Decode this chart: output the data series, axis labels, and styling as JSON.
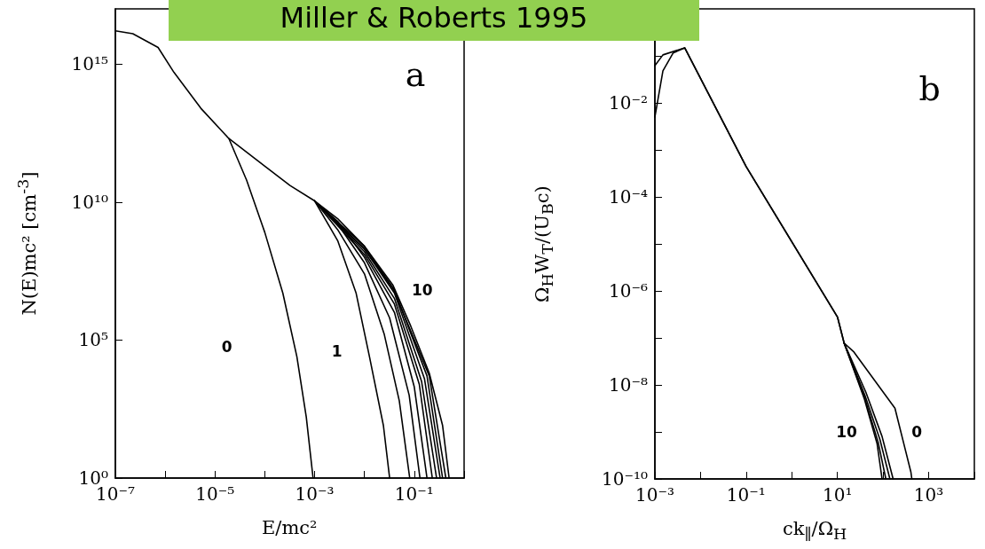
{
  "chart_data": [
    {
      "type": "line",
      "title": "Miller & Roberts 1995",
      "xlabel": "E/mc²",
      "ylabel": "N(E)mc² [cm$^{-3}$]",
      "log": "xy",
      "marker": "none",
      "line_style": "solid",
      "xlim": [
        1e-07,
        1
      ],
      "ylim": [
        1,
        1e+17
      ],
      "xticks": [
        {
          "value": 1e-07,
          "label": "10⁻⁷"
        },
        {
          "value": 1e-06,
          "label": null
        },
        {
          "value": 1e-05,
          "label": "10⁻⁵"
        },
        {
          "value": 0.0001,
          "label": null
        },
        {
          "value": 0.001,
          "label": "10⁻³"
        },
        {
          "value": 0.01,
          "label": null
        },
        {
          "value": 0.1,
          "label": "10⁻¹"
        },
        {
          "value": 1,
          "label": null
        }
      ],
      "yticks": [
        {
          "value": 1,
          "label": "10⁰"
        },
        {
          "value": 100000.0,
          "label": "10⁵"
        },
        {
          "value": 10000000000.0,
          "label": "10¹⁰"
        },
        {
          "value": 1000000000000000.0,
          "label": "10¹⁵"
        }
      ],
      "annotations": [
        "a",
        "0",
        "1",
        "10"
      ],
      "series": [
        {
          "color": "#000000",
          "x": [
            1e-07,
            2.24e-07,
            7.2e-07,
            1.5e-06,
            5.2e-06,
            1.9e-05,
            0.0001,
            0.00032,
            0.001,
            0.0029,
            0.01,
            0.037,
            0.085,
            0.2,
            0.37,
            0.5
          ],
          "values": [
            1.6e+16,
            1.26e+16,
            4000000000000000.0,
            500000000000000.0,
            25000000000000.0,
            2000000000000.0,
            200000000000.0,
            40000000000.0,
            11000000000.0,
            2500000000.0,
            250000000.0,
            10000000.0,
            320000.0,
            6300,
            80,
            1
          ]
        },
        {
          "color": "#000000",
          "x": [
            1.9e-05,
            4.3e-05,
            0.0001,
            0.00023,
            0.00044,
            0.00068,
            0.00093
          ],
          "values": [
            2000000000000.0,
            63000000000.0,
            790000000.0,
            5000000.0,
            25000.0,
            160,
            1
          ]
        },
        {
          "color": "#000000",
          "x": [
            0.001,
            0.0029,
            0.0068,
            0.0126,
            0.024,
            0.032
          ],
          "values": [
            11000000000.0,
            400000000.0,
            5000000.0,
            25000.0,
            80,
            1
          ]
        },
        {
          "color": "#000000",
          "x": [
            0.001,
            0.0029,
            0.01,
            0.025,
            0.05,
            0.081
          ],
          "values": [
            11000000000.0,
            1000000000.0,
            25000000.0,
            160000.0,
            630,
            1
          ]
        },
        {
          "color": "#000000",
          "x": [
            0.001,
            0.0029,
            0.01,
            0.032,
            0.079,
            0.13
          ],
          "values": [
            11000000000.0,
            1600000000.0,
            63000000.0,
            630000.0,
            1000,
            1
          ]
        },
        {
          "color": "#000000",
          "x": [
            0.001,
            0.0029,
            0.01,
            0.04,
            0.1,
            0.18
          ],
          "values": [
            11000000000.0,
            2000000000.0,
            100000000.0,
            1000000.0,
            2000,
            1
          ]
        },
        {
          "color": "#000000",
          "x": [
            0.001,
            0.01,
            0.04,
            0.126,
            0.23
          ],
          "values": [
            11000000000.0,
            126000000.0,
            2000000.0,
            2500,
            1
          ]
        },
        {
          "color": "#000000",
          "x": [
            0.001,
            0.01,
            0.04,
            0.14,
            0.28
          ],
          "values": [
            11000000000.0,
            160000000.0,
            3200000.0,
            3200,
            1
          ]
        },
        {
          "color": "#000000",
          "x": [
            0.001,
            0.01,
            0.04,
            0.16,
            0.33
          ],
          "values": [
            11000000000.0,
            200000000.0,
            5000000.0,
            4000,
            1
          ]
        },
        {
          "color": "#000000",
          "x": [
            0.001,
            0.01,
            0.04,
            0.18,
            0.37
          ],
          "values": [
            11000000000.0,
            200000000.0,
            6300000.0,
            5000,
            1
          ]
        },
        {
          "color": "#000000",
          "x": [
            0.001,
            0.01,
            0.037,
            0.2,
            0.43
          ],
          "values": [
            11000000000.0,
            250000000.0,
            7900000.0,
            5000,
            1
          ]
        }
      ]
    },
    {
      "type": "line",
      "xlabel": "ck$_{∥}$/Ω$_{H}$",
      "ylabel": "Ω$_{H}$W$_{T}$/(U$_{B}$c)",
      "log": "xy",
      "marker": "none",
      "line_style": "solid",
      "xlim": [
        0.001,
        10000.0
      ],
      "ylim": [
        1e-10,
        1
      ],
      "xticks": [
        {
          "value": 0.001,
          "label": "10⁻³"
        },
        {
          "value": 0.01,
          "label": null
        },
        {
          "value": 0.1,
          "label": "10⁻¹"
        },
        {
          "value": 1,
          "label": null
        },
        {
          "value": 10,
          "label": "10¹"
        },
        {
          "value": 100,
          "label": null
        },
        {
          "value": 1000,
          "label": "10³"
        },
        {
          "value": 10000.0,
          "label": null
        }
      ],
      "yticks": [
        {
          "value": 1e-10,
          "label": "10⁻¹⁰"
        },
        {
          "value": 1e-09,
          "label": null
        },
        {
          "value": 1e-08,
          "label": "10⁻⁸"
        },
        {
          "value": 1e-07,
          "label": null
        },
        {
          "value": 1e-06,
          "label": "10⁻⁶"
        },
        {
          "value": 1e-05,
          "label": null
        },
        {
          "value": 0.0001,
          "label": "10⁻⁴"
        },
        {
          "value": 0.001,
          "label": null
        },
        {
          "value": 0.01,
          "label": "10⁻²"
        },
        {
          "value": 0.1,
          "label": null
        },
        {
          "value": 1,
          "label": null
        }
      ],
      "annotations": [
        "b",
        "10",
        "0"
      ],
      "series": [
        {
          "color": "#000000",
          "x": [
            0.001,
            0.0015,
            0.0045,
            0.1,
            10,
            14,
            39,
            74,
            95
          ],
          "values": [
            0.062,
            0.105,
            0.148,
            0.00044,
            2.8e-07,
            7.8e-08,
            5e-09,
            5.6e-10,
            1e-10
          ]
        },
        {
          "color": "#000000",
          "x": [
            0.001,
            0.0015,
            0.0025,
            0.0045,
            0.1,
            10,
            14,
            23,
            182,
            407,
            427
          ],
          "values": [
            0.005,
            0.048,
            0.115,
            0.148,
            0.00044,
            2.8e-07,
            7.8e-08,
            5e-08,
            3.2e-09,
            1.4e-10,
            1e-10
          ]
        },
        {
          "color": "#000000",
          "x": [
            14,
            39,
            78,
            115
          ],
          "values": [
            7.8e-08,
            5.5e-09,
            6e-10,
            1e-10
          ]
        },
        {
          "color": "#000000",
          "x": [
            14,
            40,
            85,
            141
          ],
          "values": [
            7.8e-08,
            6e-09,
            7e-10,
            1e-10
          ]
        },
        {
          "color": "#000000",
          "x": [
            14,
            42,
            95,
            166
          ],
          "values": [
            7.8e-08,
            7e-09,
            8e-10,
            1e-10
          ]
        }
      ]
    }
  ]
}
